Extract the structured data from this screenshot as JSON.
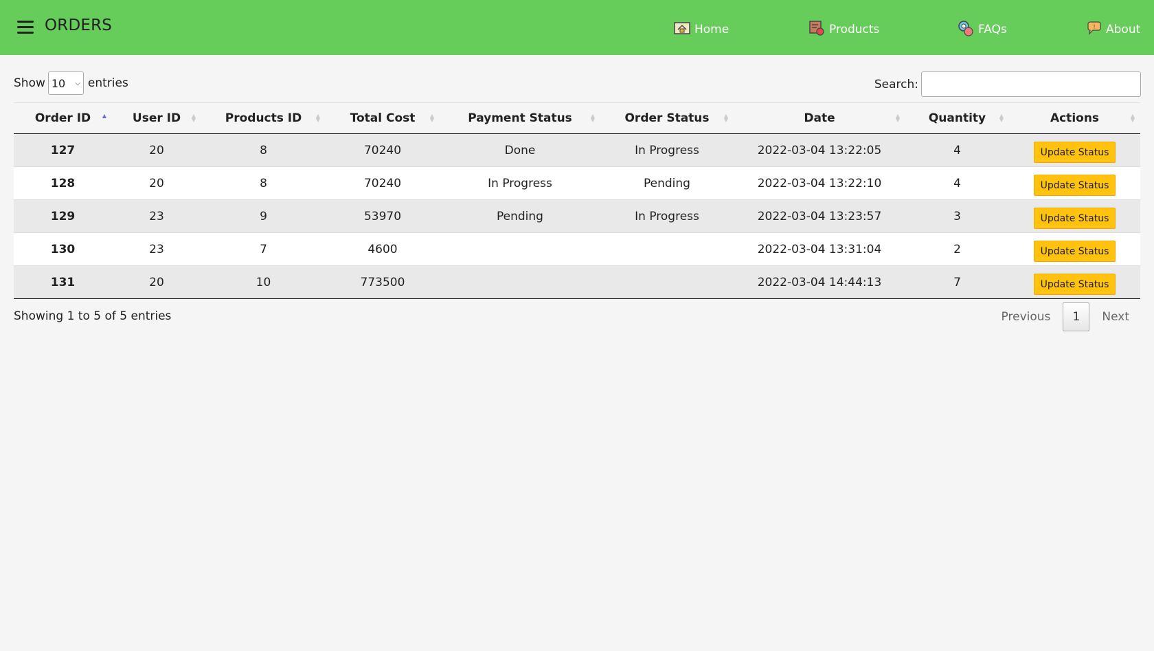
{
  "header": {
    "title": "ORDERS",
    "nav": [
      {
        "label": "Home",
        "icon": "home-icon"
      },
      {
        "label": "Products",
        "icon": "products-icon"
      },
      {
        "label": "FAQs",
        "icon": "faqs-icon"
      },
      {
        "label": "About",
        "icon": "about-icon"
      }
    ]
  },
  "controls": {
    "show_label": "Show",
    "entries_label": "entries",
    "length_value": "10",
    "search_label": "Search:",
    "search_value": ""
  },
  "table": {
    "columns": [
      "Order ID",
      "User ID",
      "Products ID",
      "Total Cost",
      "Payment Status",
      "Order Status",
      "Date",
      "Quantity",
      "Actions"
    ],
    "rows": [
      {
        "order_id": "127",
        "user_id": "20",
        "products_id": "8",
        "total_cost": "70240",
        "payment_status": "Done",
        "order_status": "In Progress",
        "date": "2022-03-04 13:22:05",
        "quantity": "4",
        "action": "Update Status"
      },
      {
        "order_id": "128",
        "user_id": "20",
        "products_id": "8",
        "total_cost": "70240",
        "payment_status": "In Progress",
        "order_status": "Pending",
        "date": "2022-03-04 13:22:10",
        "quantity": "4",
        "action": "Update Status"
      },
      {
        "order_id": "129",
        "user_id": "23",
        "products_id": "9",
        "total_cost": "53970",
        "payment_status": "Pending",
        "order_status": "In Progress",
        "date": "2022-03-04 13:23:57",
        "quantity": "3",
        "action": "Update Status"
      },
      {
        "order_id": "130",
        "user_id": "23",
        "products_id": "7",
        "total_cost": "4600",
        "payment_status": "",
        "order_status": "",
        "date": "2022-03-04 13:31:04",
        "quantity": "2",
        "action": "Update Status"
      },
      {
        "order_id": "131",
        "user_id": "20",
        "products_id": "10",
        "total_cost": "773500",
        "payment_status": "",
        "order_status": "",
        "date": "2022-03-04 14:44:13",
        "quantity": "7",
        "action": "Update Status"
      }
    ]
  },
  "footer": {
    "info": "Showing 1 to 5 of 5 entries",
    "previous": "Previous",
    "page": "1",
    "next": "Next"
  },
  "colors": {
    "header_bg": "#66cc5a",
    "button_bg": "#ffc20e"
  }
}
